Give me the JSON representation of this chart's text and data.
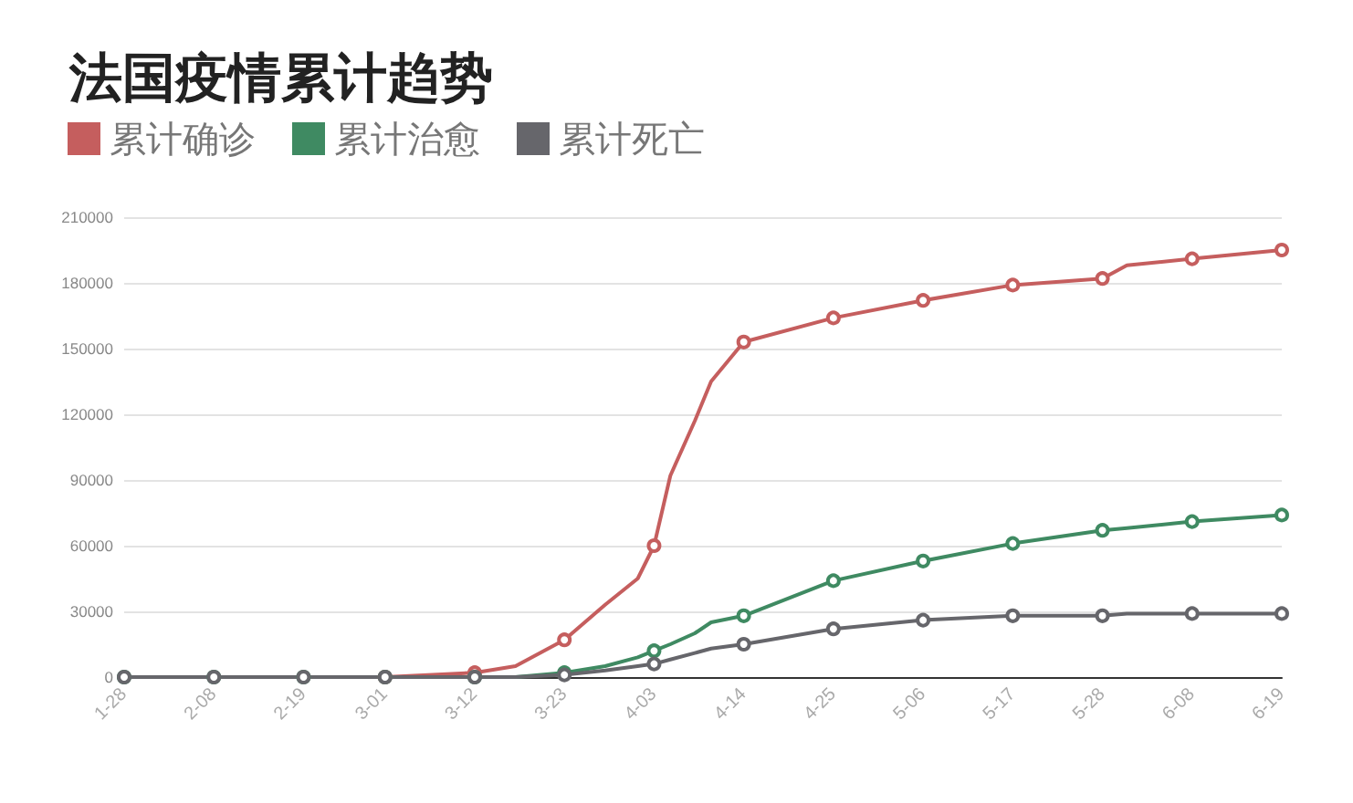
{
  "chart_data": {
    "type": "line",
    "title": "法国疫情累计趋势",
    "x": [
      "--01-28",
      "--02-08",
      "--02-19",
      "--03-01",
      "--03-12",
      "--03-17",
      "--03-23",
      "--03-28",
      "--04-01",
      "--04-03",
      "--04-05",
      "--04-08",
      "--04-10",
      "--04-14",
      "--04-25",
      "--05-06",
      "--05-17",
      "--05-28",
      "--05-31",
      "--06-08",
      "--06-19"
    ],
    "series": [
      {
        "name": "累计确诊",
        "color": "#c55e5e",
        "values": [
          null,
          null,
          null,
          0,
          2000,
          5000,
          17000,
          33000,
          45000,
          60000,
          92000,
          117000,
          135000,
          153000,
          164000,
          172000,
          179000,
          182000,
          188000,
          191000,
          195000
        ]
      },
      {
        "name": "累计治愈",
        "color": "#3f8a62",
        "values": [
          0,
          0,
          0,
          0,
          0,
          0,
          2000,
          5000,
          9000,
          12000,
          15000,
          20000,
          25000,
          28000,
          44000,
          53000,
          61000,
          67000,
          68000,
          71000,
          74000
        ]
      },
      {
        "name": "累计死亡",
        "color": "#66666b",
        "values": [
          0,
          0,
          0,
          0,
          0,
          0,
          1000,
          3000,
          5000,
          6000,
          8000,
          11000,
          13000,
          15000,
          22000,
          26000,
          28000,
          28000,
          29000,
          29000,
          29000
        ]
      }
    ],
    "xlim": [
      "--01-28",
      "--06-19"
    ],
    "xticks": [
      {
        "value": "--01-28",
        "label": "1-28"
      },
      {
        "value": "--02-08",
        "label": "2-08"
      },
      {
        "value": "--02-19",
        "label": "2-19"
      },
      {
        "value": "--03-01",
        "label": "3-01"
      },
      {
        "value": "--03-12",
        "label": "3-12"
      },
      {
        "value": "--03-23",
        "label": "3-23"
      },
      {
        "value": "--04-03",
        "label": "4-03"
      },
      {
        "value": "--04-14",
        "label": "4-14"
      },
      {
        "value": "--04-25",
        "label": "4-25"
      },
      {
        "value": "--05-06",
        "label": "5-06"
      },
      {
        "value": "--05-17",
        "label": "5-17"
      },
      {
        "value": "--05-28",
        "label": "5-28"
      },
      {
        "value": "--06-08",
        "label": "6-08"
      },
      {
        "value": "--06-19",
        "label": "6-19"
      }
    ],
    "ylim": [
      0,
      210000
    ],
    "yticks": [
      0,
      30000,
      60000,
      90000,
      120000,
      150000,
      180000,
      210000
    ],
    "grid": "y",
    "legend": "top left",
    "marker": "circle",
    "line_style": "solid"
  }
}
